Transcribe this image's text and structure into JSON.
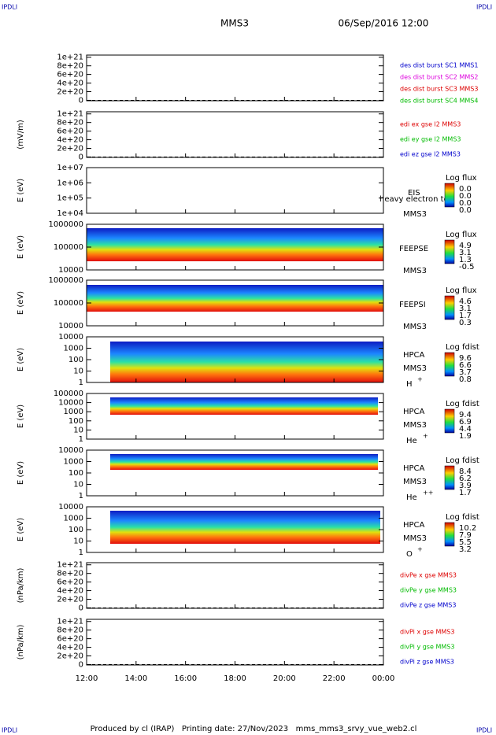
{
  "header": {
    "corner": "IPDLI",
    "mission": "MMS3",
    "date": "06/Sep/2016 12:00"
  },
  "footer": "Produced by cl (IRAP)   Printing date: 27/Nov/2023   mms_mms3_srvy_vue_web2.cl",
  "xlim": [
    12,
    24
  ],
  "xticks": [
    {
      "value": 12,
      "label": "12:00"
    },
    {
      "value": 14,
      "label": "14:00"
    },
    {
      "value": 16,
      "label": "16:00"
    },
    {
      "value": 18,
      "label": "18:00"
    },
    {
      "value": 20,
      "label": "20:00"
    },
    {
      "value": 22,
      "label": "22:00"
    },
    {
      "value": 24,
      "label": "00:00"
    }
  ],
  "chart_data": [
    {
      "type": "line",
      "ylim": [
        -1e+19,
        1.05e+21
      ],
      "yticks": [
        0,
        {
          "value": 2e+20,
          "label": "2e+20"
        },
        {
          "value": 4e+20,
          "label": "4e+20"
        },
        {
          "value": 6e+20,
          "label": "6e+20"
        },
        {
          "value": 8e+20,
          "label": "8e+20"
        },
        {
          "value": 1e+21,
          "label": "1e+21"
        }
      ],
      "series": [
        {
          "name": "des dist burst SC1 MMS1",
          "color": "#0000cc"
        },
        {
          "name": "des dist burst SC2 MMS2",
          "color": "#dd00dd"
        },
        {
          "name": "des dist burst SC3 MMS3",
          "color": "#dd0000"
        },
        {
          "name": "des dist burst SC4 MMS4",
          "color": "#00bb00"
        }
      ]
    },
    {
      "type": "line",
      "ylabel": "(mV/m)",
      "ylim": [
        -1e+19,
        1.05e+21
      ],
      "yticks": [
        0,
        {
          "value": 2e+20,
          "label": "2e+20"
        },
        {
          "value": 4e+20,
          "label": "4e+20"
        },
        {
          "value": 6e+20,
          "label": "6e+20"
        },
        {
          "value": 8e+20,
          "label": "8e+20"
        },
        {
          "value": 1e+21,
          "label": "1e+21"
        }
      ],
      "series": [
        {
          "name": "edi ex gse l2 MMS3",
          "color": "#dd0000"
        },
        {
          "name": "edi ey gse l2 MMS3",
          "color": "#00bb00"
        },
        {
          "name": "edi ez gse l2 MMS3",
          "color": "#0000cc"
        }
      ]
    },
    {
      "type": "spectrogram",
      "ylabel": "E (eV)",
      "log": true,
      "ylim": [
        10000,
        10000000
      ],
      "yticks": [
        {
          "value": 10000,
          "label": "1e+04"
        },
        {
          "value": 100000,
          "label": "1e+05"
        },
        {
          "value": 1000000,
          "label": "1e+06"
        },
        {
          "value": 10000000,
          "label": "1e+07"
        }
      ],
      "instrument": "EIS",
      "spacecraft": "MMS3",
      "note": "heavy electron to",
      "colorbar": {
        "title": "Log flux",
        "labels": [
          "0.0",
          "0.0",
          "0.0",
          "0.0"
        ]
      }
    },
    {
      "type": "spectrogram",
      "ylabel": "E (eV)",
      "log": true,
      "ylim": [
        10000,
        1000000
      ],
      "yticks": [
        10000,
        100000,
        1000000
      ],
      "instrument": "FEEPSE",
      "spacecraft": "MMS3",
      "colorbar": {
        "title": "Log flux",
        "labels": [
          "4.9",
          "3.1",
          "1.3",
          "-0.5"
        ]
      }
    },
    {
      "type": "spectrogram",
      "ylabel": "E (eV)",
      "log": true,
      "ylim": [
        10000,
        1000000
      ],
      "yticks": [
        10000,
        100000,
        1000000
      ],
      "instrument": "FEEPSI",
      "spacecraft": "MMS3",
      "colorbar": {
        "title": "Log flux",
        "labels": [
          "4.6",
          "3.1",
          "1.7",
          "0.3"
        ]
      }
    },
    {
      "type": "spectrogram",
      "ylabel": "E (eV)",
      "log": true,
      "ylim": [
        1,
        10000
      ],
      "yticks": [
        1,
        10,
        100,
        1000,
        10000
      ],
      "instrument": "HPCA",
      "spacecraft": "MMS3",
      "species": {
        "base": "H",
        "sup": "+"
      },
      "colorbar": {
        "title": "Log fdist",
        "labels": [
          "9.6",
          "6.6",
          "3.7",
          "0.8"
        ]
      }
    },
    {
      "type": "spectrogram",
      "ylabel": "E (eV)",
      "log": true,
      "ylim": [
        1,
        100000
      ],
      "yticks": [
        1,
        10,
        100,
        1000,
        10000,
        100000
      ],
      "instrument": "HPCA",
      "spacecraft": "MMS3",
      "species": {
        "base": "He",
        "sup": "+"
      },
      "colorbar": {
        "title": "Log fdist",
        "labels": [
          "9.4",
          "6.9",
          "4.4",
          "1.9"
        ]
      }
    },
    {
      "type": "spectrogram",
      "ylabel": "E (eV)",
      "log": true,
      "ylim": [
        1,
        10000
      ],
      "yticks": [
        1,
        10,
        100,
        1000,
        10000
      ],
      "instrument": "HPCA",
      "spacecraft": "MMS3",
      "species": {
        "base": "He",
        "sup": "++"
      },
      "colorbar": {
        "title": "Log fdist",
        "labels": [
          "8.4",
          "6.2",
          "3.9",
          "1.7"
        ]
      }
    },
    {
      "type": "spectrogram",
      "ylabel": "E (eV)",
      "log": true,
      "ylim": [
        1,
        10000
      ],
      "yticks": [
        1,
        10,
        100,
        1000,
        10000
      ],
      "instrument": "HPCA",
      "spacecraft": "MMS3",
      "species": {
        "base": "O",
        "sup": "+"
      },
      "colorbar": {
        "title": "Log fdist",
        "labels": [
          "10.2",
          "7.9",
          "5.5",
          "3.2"
        ]
      }
    },
    {
      "type": "line",
      "ylabel": "(nPa/km)",
      "ylim": [
        -1e+19,
        1.05e+21
      ],
      "yticks": [
        0,
        {
          "value": 2e+20,
          "label": "2e+20"
        },
        {
          "value": 4e+20,
          "label": "4e+20"
        },
        {
          "value": 6e+20,
          "label": "6e+20"
        },
        {
          "value": 8e+20,
          "label": "8e+20"
        },
        {
          "value": 1e+21,
          "label": "1e+21"
        }
      ],
      "series": [
        {
          "name": "divPe x gse MMS3",
          "color": "#dd0000"
        },
        {
          "name": "divPe y gse MMS3",
          "color": "#00bb00"
        },
        {
          "name": "divPe z gse MMS3",
          "color": "#0000cc"
        }
      ]
    },
    {
      "type": "line",
      "ylabel": "(nPa/km)",
      "ylim": [
        -1e+19,
        1.05e+21
      ],
      "yticks": [
        0,
        {
          "value": 2e+20,
          "label": "2e+20"
        },
        {
          "value": 4e+20,
          "label": "4e+20"
        },
        {
          "value": 6e+20,
          "label": "6e+20"
        },
        {
          "value": 8e+20,
          "label": "8e+20"
        },
        {
          "value": 1e+21,
          "label": "1e+21"
        }
      ],
      "series": [
        {
          "name": "divPi x gse MMS3",
          "color": "#dd0000"
        },
        {
          "name": "divPi y gse MMS3",
          "color": "#00bb00"
        },
        {
          "name": "divPi z gse MMS3",
          "color": "#0000cc"
        }
      ]
    }
  ]
}
